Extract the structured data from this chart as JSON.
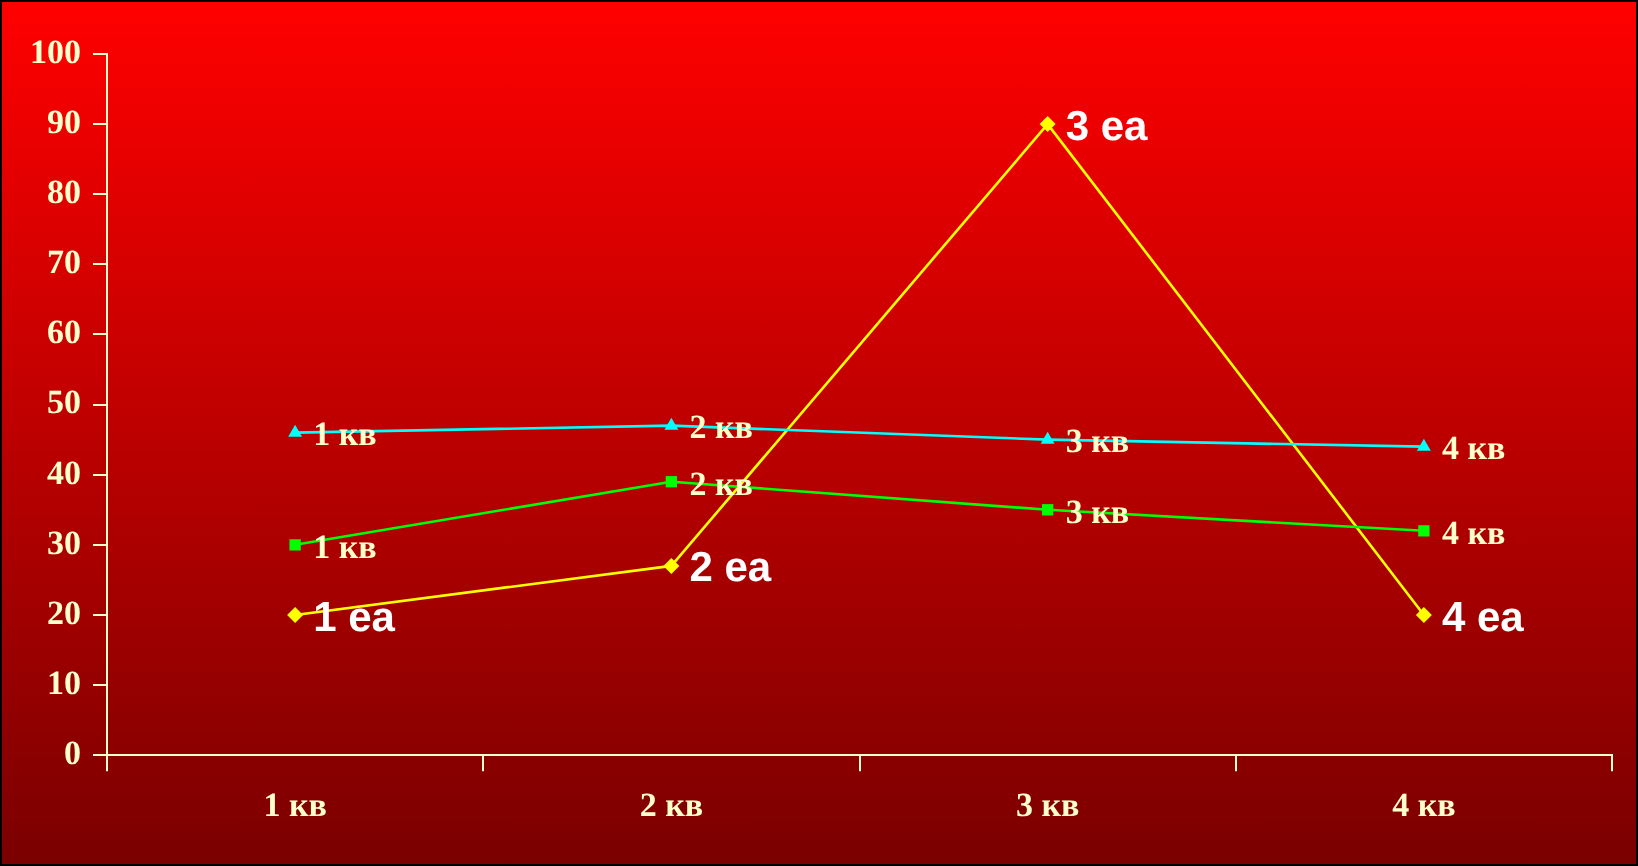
{
  "chart_data": {
    "type": "line",
    "categories": [
      "1 кв",
      "2 кв",
      "3 кв",
      "4 кв"
    ],
    "series": [
      {
        "color": "#00ffff",
        "marker": "triangle",
        "values": [
          46,
          47,
          45,
          44
        ]
      },
      {
        "color": "#00ff00",
        "marker": "square",
        "values": [
          30,
          39,
          35,
          32
        ]
      },
      {
        "color": "#ffff00",
        "marker": "diamond",
        "values": [
          20,
          27,
          90,
          20
        ]
      }
    ],
    "annotations": [
      {
        "text": "1 кв",
        "x": "1 кв",
        "y": 46
      },
      {
        "text": "2 кв",
        "x": "2 кв",
        "y": 47
      },
      {
        "text": "3 кв",
        "x": "3 кв",
        "y": 45
      },
      {
        "text": "4 кв",
        "x": "4 кв",
        "y": 44
      },
      {
        "text": "1 кв",
        "x": "1 кв",
        "y": 30
      },
      {
        "text": "2 кв",
        "x": "2 кв",
        "y": 39
      },
      {
        "text": "3 кв",
        "x": "3 кв",
        "y": 35
      },
      {
        "text": "4 кв",
        "x": "4 кв",
        "y": 32
      },
      {
        "text": "1 еа",
        "x": "1 кв",
        "y": 20
      },
      {
        "text": "2 еа",
        "x": "2 кв",
        "y": 27
      },
      {
        "text": "3 еа",
        "x": "3 кв",
        "y": 90
      },
      {
        "text": "4 еа",
        "x": "4 кв",
        "y": 20
      }
    ],
    "ylim": [
      0,
      100
    ],
    "yticks": [
      0,
      10,
      20,
      30,
      40,
      50,
      60,
      70,
      80,
      90,
      100
    ],
    "grid": false,
    "legend": false
  }
}
